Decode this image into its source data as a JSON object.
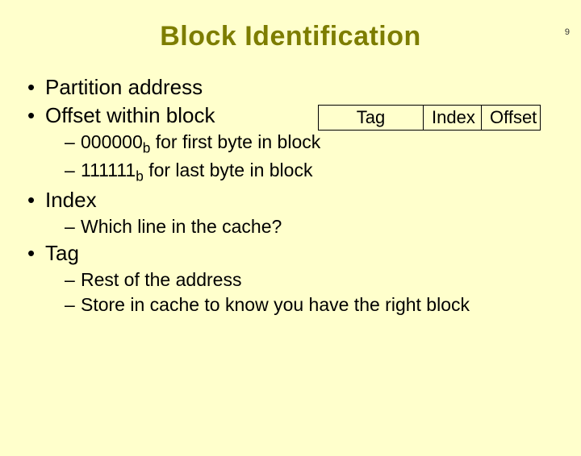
{
  "page_number": "9",
  "title": "Block Identification",
  "address_box": {
    "tag": "Tag",
    "index": "Index",
    "offset": "Offset"
  },
  "bullets": {
    "b1": "Partition address",
    "b2": "Offset within block",
    "b2_sub1_pre": "000000",
    "b2_sub1_b": "b",
    "b2_sub1_post": " for first byte in block",
    "b2_sub2_pre": "111111",
    "b2_sub2_b": "b",
    "b2_sub2_post": " for last byte in block",
    "b3": "Index",
    "b3_sub1": "Which line in the cache?",
    "b4": "Tag",
    "b4_sub1": "Rest of the address",
    "b4_sub2": "Store in cache to know you have the right block"
  },
  "colors": {
    "background": "#ffffcc",
    "title": "#7d7d00",
    "text": "#000000",
    "border": "#000000"
  }
}
